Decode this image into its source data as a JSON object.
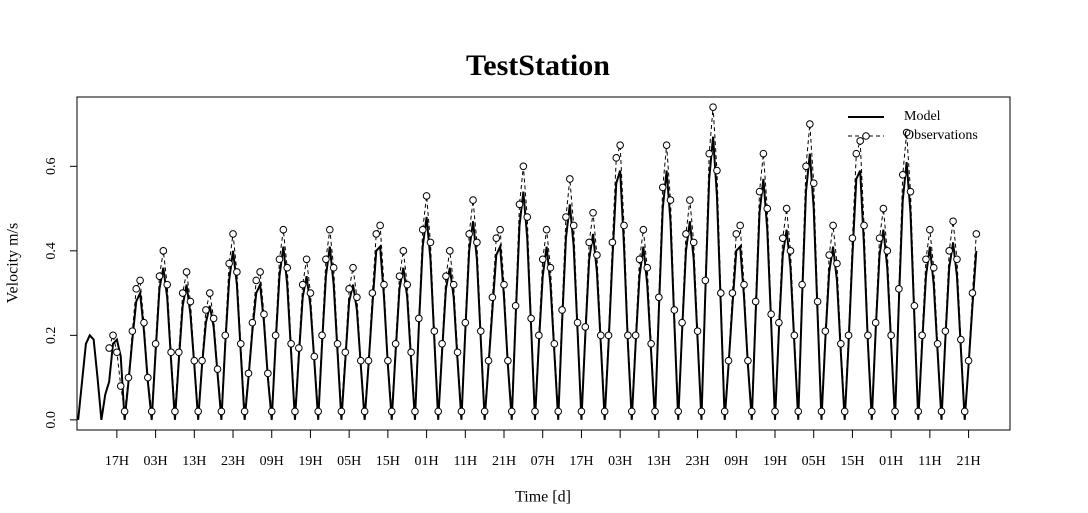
{
  "chart_data": {
    "type": "line",
    "title": "TestStation",
    "xlabel": "Time [d]",
    "ylabel": "Velocity m/s",
    "x": [
      0,
      1,
      2,
      3,
      4,
      5,
      6,
      7,
      8,
      9,
      10,
      11,
      12,
      13,
      14,
      15,
      16,
      17,
      18,
      19,
      20,
      21,
      22,
      23,
      24,
      25,
      26,
      27,
      28,
      29,
      30,
      31,
      32,
      33,
      34,
      35,
      36,
      37,
      38,
      39,
      40,
      41,
      42,
      43,
      44,
      45,
      46,
      47,
      48,
      49,
      50,
      51,
      52,
      53,
      54,
      55,
      56,
      57,
      58,
      59,
      60,
      61,
      62,
      63,
      64,
      65,
      66,
      67,
      68,
      69,
      70,
      71,
      72,
      73,
      74,
      75,
      76,
      77,
      78,
      79,
      80,
      81,
      82,
      83,
      84,
      85,
      86,
      87,
      88,
      89,
      90,
      91,
      92,
      93,
      94,
      95,
      96,
      97,
      98,
      99,
      100,
      101,
      102,
      103,
      104,
      105,
      106,
      107,
      108,
      109,
      110,
      111,
      112,
      113,
      114,
      115,
      116,
      117,
      118,
      119,
      120,
      121,
      122,
      123,
      124,
      125,
      126,
      127,
      128,
      129,
      130,
      131,
      132,
      133,
      134,
      135,
      136,
      137,
      138,
      139,
      140,
      141,
      142,
      143,
      144,
      145,
      146,
      147,
      148,
      149,
      150,
      151,
      152,
      153,
      154,
      155,
      156,
      157,
      158,
      159,
      160,
      161,
      162,
      163,
      164,
      165,
      166,
      167,
      168,
      169,
      170,
      171,
      172,
      173,
      174,
      175,
      176,
      177,
      178,
      179,
      180,
      181,
      182,
      183,
      184,
      185,
      186,
      187,
      188,
      189,
      190,
      191,
      192,
      193,
      194,
      195,
      196,
      197,
      198,
      199,
      200,
      201,
      202,
      203,
      204,
      205,
      206,
      207,
      208,
      209,
      210,
      211,
      212,
      213,
      214,
      215,
      216,
      217,
      218,
      219,
      220,
      221,
      222,
      223,
      224,
      225,
      226,
      227,
      228,
      229,
      230,
      231,
      232
    ],
    "series": [
      {
        "name": "Model",
        "color": "#000000",
        "style": "solid",
        "marker": "none",
        "values": [
          0,
          0.09,
          0.18,
          0.2,
          0.19,
          0.1,
          0,
          0.06,
          0.09,
          0.18,
          0.19,
          0.15,
          0,
          0.09,
          0.19,
          0.28,
          0.3,
          0.21,
          0.09,
          0,
          0.16,
          0.31,
          0.36,
          0.29,
          0.14,
          0,
          0.14,
          0.27,
          0.32,
          0.25,
          0.13,
          0,
          0.13,
          0.23,
          0.27,
          0.22,
          0.11,
          0,
          0.18,
          0.33,
          0.4,
          0.32,
          0.16,
          0,
          0.1,
          0.21,
          0.3,
          0.32,
          0.23,
          0.1,
          0,
          0.18,
          0.34,
          0.41,
          0.32,
          0.16,
          0,
          0.15,
          0.29,
          0.34,
          0.27,
          0.14,
          0,
          0.18,
          0.34,
          0.41,
          0.32,
          0.16,
          0,
          0.14,
          0.28,
          0.32,
          0.26,
          0.13,
          0,
          0.13,
          0.27,
          0.4,
          0.41,
          0.29,
          0.13,
          0,
          0.16,
          0.31,
          0.36,
          0.29,
          0.14,
          0,
          0.22,
          0.41,
          0.48,
          0.38,
          0.19,
          0,
          0.16,
          0.31,
          0.36,
          0.29,
          0.14,
          0,
          0.21,
          0.4,
          0.47,
          0.38,
          0.19,
          0,
          0.13,
          0.26,
          0.39,
          0.41,
          0.29,
          0.13,
          0,
          0.24,
          0.46,
          0.54,
          0.43,
          0.22,
          0,
          0.18,
          0.34,
          0.41,
          0.32,
          0.16,
          0,
          0.23,
          0.43,
          0.51,
          0.41,
          0.21,
          0,
          0.2,
          0.38,
          0.44,
          0.35,
          0.18,
          0,
          0.18,
          0.38,
          0.56,
          0.59,
          0.41,
          0.18,
          0,
          0.18,
          0.34,
          0.41,
          0.32,
          0.16,
          0,
          0.26,
          0.5,
          0.59,
          0.47,
          0.23,
          0,
          0.21,
          0.4,
          0.47,
          0.38,
          0.19,
          0,
          0.3,
          0.57,
          0.67,
          0.53,
          0.27,
          0,
          0.13,
          0.27,
          0.4,
          0.41,
          0.29,
          0.13,
          0,
          0.25,
          0.49,
          0.57,
          0.45,
          0.23,
          0,
          0.21,
          0.39,
          0.45,
          0.36,
          0.18,
          0,
          0.29,
          0.54,
          0.63,
          0.5,
          0.25,
          0,
          0.19,
          0.35,
          0.41,
          0.33,
          0.16,
          0,
          0.18,
          0.39,
          0.57,
          0.59,
          0.41,
          0.18,
          0,
          0.21,
          0.39,
          0.45,
          0.36,
          0.18,
          0,
          0.28,
          0.52,
          0.61,
          0.49,
          0.24,
          0,
          0.18,
          0.34,
          0.41,
          0.32,
          0.16,
          0,
          0.19,
          0.36,
          0.42,
          0.34,
          0.17,
          0,
          0.13,
          0.27,
          0.4
        ]
      },
      {
        "name": "Observations",
        "color": "#000000",
        "style": "dashed",
        "marker": "circle",
        "values": [
          null,
          null,
          null,
          null,
          null,
          null,
          null,
          null,
          0.17,
          0.2,
          0.16,
          0.08,
          0.02,
          0.1,
          0.21,
          0.31,
          0.33,
          0.23,
          0.1,
          0.02,
          0.18,
          0.34,
          0.4,
          0.32,
          0.16,
          0.02,
          0.16,
          0.3,
          0.35,
          0.28,
          0.14,
          0.02,
          0.14,
          0.26,
          0.3,
          0.24,
          0.12,
          0.02,
          0.2,
          0.37,
          0.44,
          0.35,
          0.18,
          0.02,
          0.11,
          0.23,
          0.33,
          0.35,
          0.25,
          0.11,
          0.02,
          0.2,
          0.38,
          0.45,
          0.36,
          0.18,
          0.02,
          0.17,
          0.32,
          0.38,
          0.3,
          0.15,
          0.02,
          0.2,
          0.38,
          0.45,
          0.36,
          0.18,
          0.02,
          0.16,
          0.31,
          0.36,
          0.29,
          0.14,
          0.02,
          0.14,
          0.3,
          0.44,
          0.46,
          0.32,
          0.14,
          0.02,
          0.18,
          0.34,
          0.4,
          0.32,
          0.16,
          0.02,
          0.24,
          0.45,
          0.53,
          0.42,
          0.21,
          0.02,
          0.18,
          0.34,
          0.4,
          0.32,
          0.16,
          0.02,
          0.23,
          0.44,
          0.52,
          0.42,
          0.21,
          0.02,
          0.14,
          0.29,
          0.43,
          0.45,
          0.32,
          0.14,
          0.02,
          0.27,
          0.51,
          0.6,
          0.48,
          0.24,
          0.02,
          0.2,
          0.38,
          0.45,
          0.36,
          0.18,
          0.02,
          0.26,
          0.48,
          0.57,
          0.46,
          0.23,
          0.02,
          0.22,
          0.42,
          0.49,
          0.39,
          0.2,
          0.02,
          0.2,
          0.42,
          0.62,
          0.65,
          0.46,
          0.2,
          0.02,
          0.2,
          0.38,
          0.45,
          0.36,
          0.18,
          0.02,
          0.29,
          0.55,
          0.65,
          0.52,
          0.26,
          0.02,
          0.23,
          0.44,
          0.52,
          0.42,
          0.21,
          0.02,
          0.33,
          0.63,
          0.74,
          0.59,
          0.3,
          0.02,
          0.14,
          0.3,
          0.44,
          0.46,
          0.32,
          0.14,
          0.02,
          0.28,
          0.54,
          0.63,
          0.5,
          0.25,
          0.02,
          0.23,
          0.43,
          0.5,
          0.4,
          0.2,
          0.02,
          0.32,
          0.6,
          0.7,
          0.56,
          0.28,
          0.02,
          0.21,
          0.39,
          0.46,
          0.37,
          0.18,
          0.02,
          0.2,
          0.43,
          0.63,
          0.66,
          0.46,
          0.2,
          0.02,
          0.23,
          0.43,
          0.5,
          0.4,
          0.2,
          0.02,
          0.31,
          0.58,
          0.68,
          0.54,
          0.27,
          0.02,
          0.2,
          0.38,
          0.45,
          0.36,
          0.18,
          0.02,
          0.21,
          0.4,
          0.47,
          0.38,
          0.19,
          0.02,
          0.14,
          0.3,
          0.44
        ]
      }
    ],
    "xlim": [
      -0.3,
      240.7
    ],
    "xticks": [
      {
        "value": 10,
        "label": "17H"
      },
      {
        "value": 20,
        "label": "03H"
      },
      {
        "value": 30,
        "label": "13H"
      },
      {
        "value": 40,
        "label": "23H"
      },
      {
        "value": 50,
        "label": "09H"
      },
      {
        "value": 60,
        "label": "19H"
      },
      {
        "value": 70,
        "label": "05H"
      },
      {
        "value": 80,
        "label": "15H"
      },
      {
        "value": 90,
        "label": "01H"
      },
      {
        "value": 100,
        "label": "11H"
      },
      {
        "value": 110,
        "label": "21H"
      },
      {
        "value": 120,
        "label": "07H"
      },
      {
        "value": 130,
        "label": "17H"
      },
      {
        "value": 140,
        "label": "03H"
      },
      {
        "value": 150,
        "label": "13H"
      },
      {
        "value": 160,
        "label": "23H"
      },
      {
        "value": 170,
        "label": "09H"
      },
      {
        "value": 180,
        "label": "19H"
      },
      {
        "value": 190,
        "label": "05H"
      },
      {
        "value": 200,
        "label": "15H"
      },
      {
        "value": 210,
        "label": "01H"
      },
      {
        "value": 220,
        "label": "11H"
      },
      {
        "value": 230,
        "label": "21H"
      }
    ],
    "ylim": [
      -0.024,
      0.764
    ],
    "yticks": [
      {
        "value": 0,
        "label": "0.0"
      },
      0.2,
      0.4,
      0.6
    ],
    "grid": false,
    "legend": "topright"
  }
}
